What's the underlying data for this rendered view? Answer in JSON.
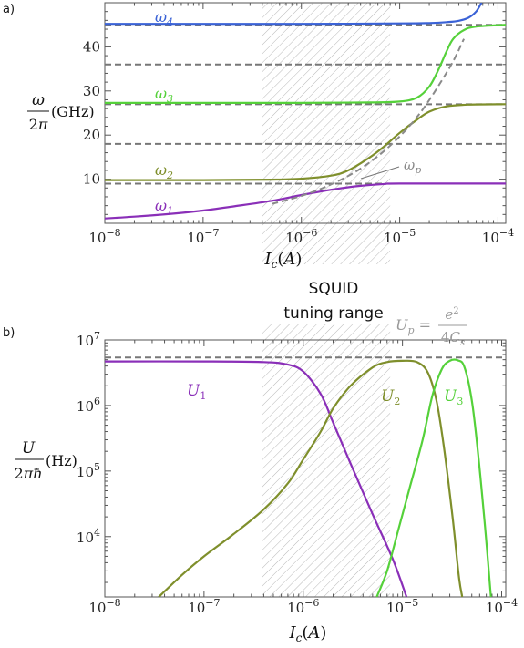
{
  "figure": {
    "shaded_region_label_line1": "SQUID",
    "shaded_region_label_line2": "tuning range",
    "shaded_region_range": [
      4e-07,
      8e-06
    ]
  },
  "chart_data": [
    {
      "panel": "a)",
      "type": "line",
      "xscale": "log",
      "xlim": [
        1e-08,
        0.00012
      ],
      "ylim": [
        0,
        50
      ],
      "xlabel": "I_c(A)",
      "ylabel": "ω/2π (GHz)",
      "x_ticks": [
        "10^-8",
        "10^-7",
        "10^-6",
        "10^-5",
        "10^-4"
      ],
      "y_ticks": [
        "10",
        "20",
        "30",
        "40"
      ],
      "y_tick_values": [
        10,
        20,
        30,
        40
      ],
      "grid": false,
      "dashed_levels": [
        9.0,
        18.0,
        27.0,
        36.0,
        45.0
      ],
      "series": [
        {
          "name": "ω4",
          "color": "#3a62d6",
          "points": [
            [
              1e-08,
              45.2
            ],
            [
              1e-07,
              45.2
            ],
            [
              1e-06,
              45.2
            ],
            [
              1e-05,
              45.3
            ],
            [
              2e-05,
              45.4
            ],
            [
              3e-05,
              45.6
            ],
            [
              4e-05,
              45.9
            ],
            [
              5e-05,
              46.6
            ],
            [
              6e-05,
              48.0
            ],
            [
              6.8e-05,
              50.0
            ]
          ]
        },
        {
          "name": "ω3",
          "color": "#55d13a",
          "points": [
            [
              1e-08,
              27.3
            ],
            [
              1e-07,
              27.3
            ],
            [
              1e-06,
              27.3
            ],
            [
              5e-06,
              27.4
            ],
            [
              1e-05,
              27.6
            ],
            [
              1.5e-05,
              28.5
            ],
            [
              2e-05,
              31.0
            ],
            [
              2.5e-05,
              35.0
            ],
            [
              3e-05,
              39.0
            ],
            [
              3.5e-05,
              41.8
            ],
            [
              4.5e-05,
              43.8
            ],
            [
              6e-05,
              44.6
            ],
            [
              0.00012,
              45.0
            ]
          ]
        },
        {
          "name": "ω2",
          "color": "#7f8f2c",
          "points": [
            [
              1e-08,
              9.8
            ],
            [
              1e-07,
              9.8
            ],
            [
              5e-07,
              9.9
            ],
            [
              1e-06,
              10.1
            ],
            [
              2e-06,
              10.8
            ],
            [
              3e-06,
              12.0
            ],
            [
              5e-06,
              15.0
            ],
            [
              7e-06,
              17.5
            ],
            [
              1e-05,
              20.5
            ],
            [
              1.5e-05,
              23.5
            ],
            [
              2e-05,
              25.3
            ],
            [
              3e-05,
              26.5
            ],
            [
              5e-05,
              26.9
            ],
            [
              0.00012,
              27.0
            ]
          ]
        },
        {
          "name": "ω1",
          "color": "#8a2fb8",
          "points": [
            [
              1e-08,
              1.1
            ],
            [
              2e-08,
              1.5
            ],
            [
              5e-08,
              2.2
            ],
            [
              1e-07,
              2.9
            ],
            [
              2e-07,
              3.8
            ],
            [
              5e-07,
              5.1
            ],
            [
              1e-06,
              6.4
            ],
            [
              2e-06,
              7.6
            ],
            [
              4e-06,
              8.5
            ],
            [
              7e-06,
              8.9
            ],
            [
              1e-05,
              9.0
            ],
            [
              0.00012,
              9.0
            ]
          ]
        }
      ],
      "annotation": "ω_p",
      "omega_p_points": [
        [
          5e-07,
          4.4
        ],
        [
          1e-06,
          6.2
        ],
        [
          2e-06,
          8.8
        ],
        [
          4e-06,
          12.4
        ],
        [
          8e-06,
          17.6
        ],
        [
          1.6e-05,
          24.9
        ],
        [
          3.2e-05,
          35.2
        ],
        [
          4.5e-05,
          41.8
        ]
      ]
    },
    {
      "panel": "b)",
      "type": "line",
      "xscale": "log",
      "yscale": "log",
      "xlim": [
        1e-08,
        0.00011
      ],
      "ylim": [
        1200.0,
        10000000.0
      ],
      "xlabel": "I_c(A)",
      "ylabel": "U/2πħ (Hz)",
      "x_ticks": [
        "10^-8",
        "10^-7",
        "10^-6",
        "10^-5",
        "10^-4"
      ],
      "y_ticks": [
        "10^4",
        "10^5",
        "10^6",
        "10^7"
      ],
      "y_tick_values": [
        10000.0,
        100000.0,
        1000000.0,
        10000000.0
      ],
      "grid": false,
      "dashed_level": 5400000.0,
      "dashed_label": "U_p = e²/4C_s",
      "series": [
        {
          "name": "U1",
          "color": "#8a2fb8",
          "points": [
            [
              1e-08,
              4700000.0
            ],
            [
              1e-07,
              4700000.0
            ],
            [
              4e-07,
              4600000.0
            ],
            [
              7e-07,
              4200000.0
            ],
            [
              1e-06,
              3300000.0
            ],
            [
              1.5e-06,
              1500000.0
            ],
            [
              2e-06,
              550000.0
            ],
            [
              3e-06,
              130000.0
            ],
            [
              5e-06,
              22000.0
            ],
            [
              8e-06,
              4500.0
            ],
            [
              1.1e-05,
              1200.0
            ]
          ]
        },
        {
          "name": "U2",
          "color": "#7f8f2c",
          "points": [
            [
              3.5e-08,
              1200.0
            ],
            [
              6e-08,
              2600.0
            ],
            [
              1e-07,
              5000.0
            ],
            [
              2e-07,
              11000.0
            ],
            [
              4e-07,
              26000.0
            ],
            [
              7e-07,
              65000.0
            ],
            [
              1e-06,
              150000.0
            ],
            [
              1.5e-06,
              400000.0
            ],
            [
              2e-06,
              900000.0
            ],
            [
              3e-06,
              2000000.0
            ],
            [
              5e-06,
              3800000.0
            ],
            [
              7e-06,
              4600000.0
            ],
            [
              1e-05,
              4800000.0
            ],
            [
              1.4e-05,
              4600000.0
            ],
            [
              1.8e-05,
              3200000.0
            ],
            [
              2.2e-05,
              1200000.0
            ],
            [
              2.6e-05,
              250000.0
            ],
            [
              3.2e-05,
              20000.0
            ],
            [
              3.7e-05,
              2500.0
            ],
            [
              4e-05,
              1200.0
            ]
          ]
        },
        {
          "name": "U3",
          "color": "#55d13a",
          "points": [
            [
              5.5e-06,
              1200.0
            ],
            [
              7e-06,
              3000.0
            ],
            [
              9e-06,
              12000.0
            ],
            [
              1.2e-05,
              60000.0
            ],
            [
              1.6e-05,
              300000.0
            ],
            [
              2e-05,
              1400000.0
            ],
            [
              2.5e-05,
              3600000.0
            ],
            [
              3e-05,
              4800000.0
            ],
            [
              3.6e-05,
              4900000.0
            ],
            [
              4.2e-05,
              3900000.0
            ],
            [
              5e-05,
              1200000.0
            ],
            [
              5.8e-05,
              180000.0
            ],
            [
              6.8e-05,
              14000.0
            ],
            [
              7.8e-05,
              1200.0
            ]
          ]
        }
      ]
    }
  ]
}
